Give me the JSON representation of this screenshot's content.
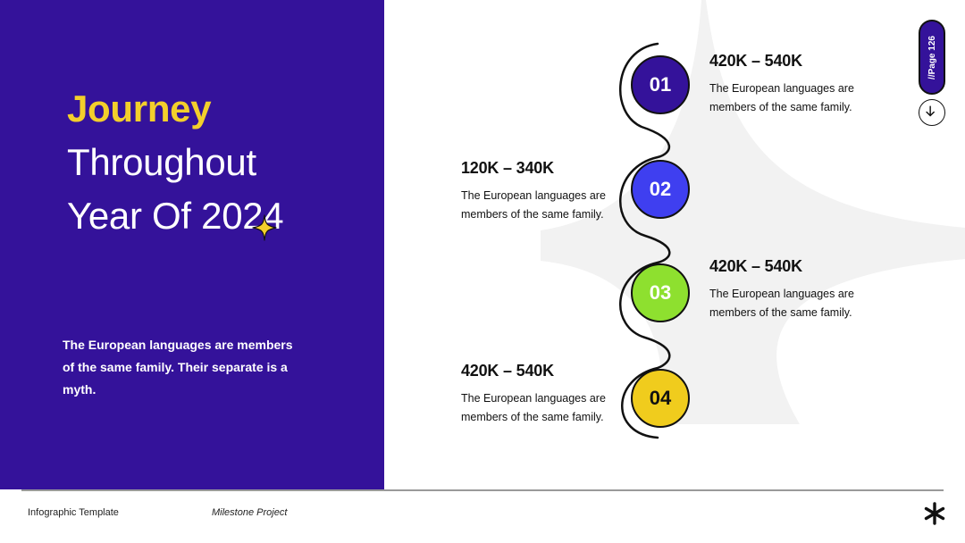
{
  "left": {
    "title_accent": "Journey",
    "title_line2": "Throughout",
    "title_line3": "Year Of 2024",
    "intro": "The European languages are members of the same family. Their separate is a myth."
  },
  "timeline": {
    "steps": [
      {
        "number": "01",
        "range": "420K – 540K",
        "desc": "The European languages are members of the same family.",
        "color": "#34129a",
        "text_color": "#ffffff"
      },
      {
        "number": "02",
        "range": "120K – 340K",
        "desc": "The European languages are members of the same family.",
        "color": "#3f3ff0",
        "text_color": "#ffffff"
      },
      {
        "number": "03",
        "range": "420K – 540K",
        "desc": "The European languages are members of the same family.",
        "color": "#8ee02f",
        "text_color": "#ffffff"
      },
      {
        "number": "04",
        "range": "420K – 540K",
        "desc": "The European languages are members of the same family.",
        "color": "#f0cc1d",
        "text_color": "#111111"
      }
    ]
  },
  "nav": {
    "page_label": "//Page 126"
  },
  "footer": {
    "left_text": "Infographic Template",
    "mid_text": "Milestone Project"
  },
  "colors": {
    "panel": "#34129a",
    "accent": "#f3cf2b",
    "shape": "#f2f2f2"
  },
  "icons": {
    "sparkle": "sparkle-icon",
    "arrow": "arrow-down-icon",
    "logo": "asterisk-icon"
  }
}
